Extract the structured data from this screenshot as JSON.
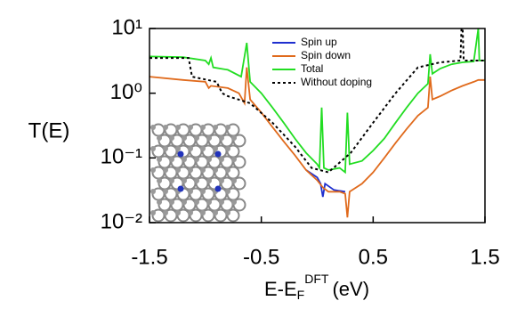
{
  "chart_data": {
    "type": "line",
    "log_y": true,
    "ylabel": "T(E)",
    "xlabel": {
      "main": "E-E",
      "sub": "F",
      "sup": "DFT",
      "unit": "(eV)"
    },
    "xlim": [
      -1.5,
      1.5
    ],
    "xticks": [
      -1.5,
      -0.5,
      0.5,
      1.5
    ],
    "ylim": [
      0.01,
      10
    ],
    "yticks": [
      {
        "value": 0.01,
        "label": "10⁻²"
      },
      {
        "value": 0.1,
        "label": "10⁻¹"
      },
      {
        "value": 1,
        "label": "10⁰"
      },
      {
        "value": 10,
        "label": "10¹"
      }
    ],
    "series": [
      {
        "name": "Spin up",
        "color": "#1f2fcf",
        "dash": false,
        "x": [
          -0.1,
          0.0,
          0.03,
          0.05,
          0.07,
          0.15,
          0.25
        ],
        "values": [
          0.065,
          0.05,
          0.04,
          0.025,
          0.04,
          0.032,
          0.03
        ]
      },
      {
        "name": "Spin down",
        "color": "#e06a1c",
        "dash": false,
        "x": [
          -1.5,
          -1.2,
          -1.0,
          -0.97,
          -0.95,
          -0.8,
          -0.7,
          -0.65,
          -0.63,
          -0.6,
          -0.5,
          -0.4,
          -0.3,
          -0.2,
          -0.1,
          0.0,
          0.05,
          0.1,
          0.2,
          0.25,
          0.27,
          0.29,
          0.4,
          0.5,
          0.6,
          0.7,
          0.8,
          0.9,
          0.99,
          1.01,
          1.03,
          1.1,
          1.2,
          1.3,
          1.4,
          1.44,
          1.5
        ],
        "values": [
          1.8,
          1.6,
          1.5,
          1.2,
          1.3,
          1.2,
          1.0,
          0.7,
          2.5,
          0.8,
          0.5,
          0.3,
          0.18,
          0.11,
          0.065,
          0.045,
          0.035,
          0.03,
          0.03,
          0.028,
          0.012,
          0.03,
          0.04,
          0.06,
          0.1,
          0.17,
          0.28,
          0.45,
          0.6,
          1.8,
          0.8,
          0.9,
          1.1,
          1.3,
          1.5,
          1.6,
          1.6
        ]
      },
      {
        "name": "Total",
        "color": "#22dd22",
        "dash": false,
        "x": [
          -1.5,
          -1.2,
          -1.0,
          -0.97,
          -0.95,
          -0.93,
          -0.8,
          -0.68,
          -0.63,
          -0.6,
          -0.5,
          -0.4,
          -0.3,
          -0.2,
          -0.1,
          0.0,
          0.02,
          0.04,
          0.06,
          0.1,
          0.2,
          0.25,
          0.27,
          0.29,
          0.4,
          0.5,
          0.6,
          0.7,
          0.8,
          0.9,
          0.99,
          1.01,
          1.03,
          1.1,
          1.2,
          1.3,
          1.4,
          1.44,
          1.45,
          1.5
        ],
        "values": [
          3.7,
          3.6,
          3.2,
          2.8,
          3.5,
          2.5,
          2.3,
          1.8,
          6,
          1.5,
          1.0,
          0.6,
          0.35,
          0.2,
          0.12,
          0.08,
          0.07,
          0.6,
          0.07,
          0.065,
          0.07,
          0.06,
          0.5,
          0.08,
          0.09,
          0.13,
          0.2,
          0.35,
          0.6,
          1.0,
          1.4,
          4,
          2,
          2.4,
          2.8,
          3.0,
          3.1,
          10,
          3.2,
          3.2
        ]
      },
      {
        "name": "Without doping",
        "color": "#000000",
        "dash": true,
        "x": [
          -1.5,
          -1.15,
          -1.12,
          -0.9,
          -0.85,
          -0.8,
          -0.6,
          -0.4,
          -0.2,
          -0.05,
          0.1,
          0.3,
          0.5,
          0.7,
          0.9,
          1.1,
          1.28,
          1.29,
          1.3,
          1.31,
          1.5
        ],
        "values": [
          3.5,
          3.5,
          1.8,
          1.5,
          1.0,
          0.9,
          0.7,
          0.35,
          0.15,
          0.07,
          0.06,
          0.12,
          0.35,
          1.0,
          2.5,
          3.0,
          3.2,
          10,
          10,
          3.2,
          3.2
        ]
      }
    ]
  }
}
